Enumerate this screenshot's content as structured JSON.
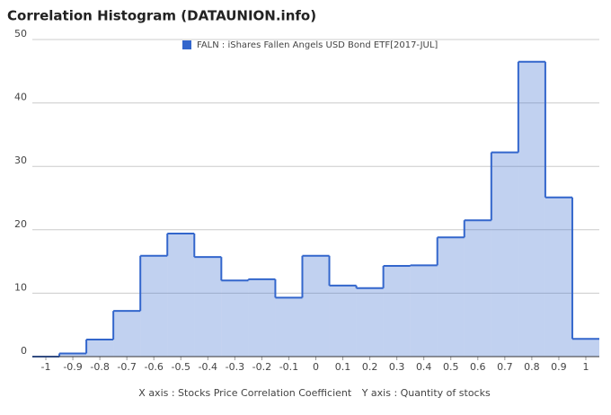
{
  "chart_data": {
    "type": "step",
    "title": "Correlation Histogram (DATAUNION.info)",
    "x_label": "X axis : Stocks Price Correlation Coefficient",
    "y_label": "Y axis : Quantity of stocks",
    "series": [
      {
        "name": "FALN : iShares Fallen Angels USD Bond ETF[2017-JUL]",
        "color": "#3366cc",
        "values": [
          0,
          0.5,
          2.7,
          7.2,
          15.9,
          19.4,
          15.7,
          12.0,
          12.2,
          9.3,
          15.9,
          11.2,
          10.8,
          14.3,
          14.4,
          18.8,
          21.5,
          32.2,
          46.5,
          25.1,
          2.8
        ]
      }
    ],
    "x": [
      -1,
      -0.9,
      -0.8,
      -0.7,
      -0.6,
      -0.5,
      -0.4,
      -0.3,
      -0.2,
      -0.1,
      0,
      0.1,
      0.2,
      0.3,
      0.4,
      0.5,
      0.6,
      0.7,
      0.8,
      0.9,
      1
    ],
    "xlim": [
      -1.05,
      1.05
    ],
    "xticks": [
      -1,
      -0.9,
      -0.8,
      -0.7,
      -0.6,
      -0.5,
      -0.4,
      -0.3,
      -0.2,
      -0.1,
      0,
      0.1,
      0.2,
      0.3,
      0.4,
      0.5,
      0.6,
      0.7,
      0.8,
      0.9,
      1
    ],
    "ylim": [
      0,
      50
    ],
    "yticks": [
      0,
      10,
      20,
      30,
      40,
      50
    ],
    "grid": true,
    "legend": "top"
  }
}
